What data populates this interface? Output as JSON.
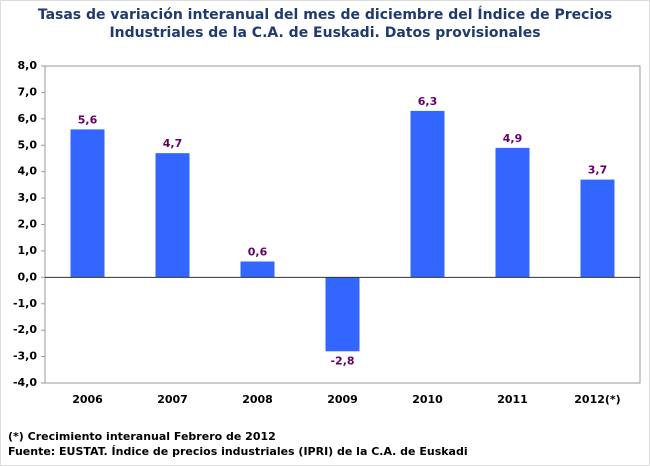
{
  "chart_data": {
    "type": "bar",
    "title": [
      "Tasas de variación interanual del mes de diciembre del Índice de Precios",
      "Industriales de la C.A. de Euskadi. Datos provisionales"
    ],
    "categories": [
      "2006",
      "2007",
      "2008",
      "2009",
      "2010",
      "2011",
      "2012(*)"
    ],
    "values": [
      5.6,
      4.7,
      0.6,
      -2.8,
      6.3,
      4.9,
      3.7
    ],
    "value_labels": [
      "5,6",
      "4,7",
      "0,6",
      "-2,8",
      "6,3",
      "4,9",
      "3,7"
    ],
    "color": "#3366ff",
    "ylim": [
      -4,
      8
    ],
    "yticks": [
      {
        "value": -4,
        "label": "-4,0"
      },
      {
        "value": -3,
        "label": "-3,0"
      },
      {
        "value": -2,
        "label": "-2,0"
      },
      {
        "value": -1,
        "label": "-1,0"
      },
      {
        "value": 0,
        "label": "0,0"
      },
      {
        "value": 1,
        "label": "1,0"
      },
      {
        "value": 2,
        "label": "2,0"
      },
      {
        "value": 3,
        "label": "3,0"
      },
      {
        "value": 4,
        "label": "4,0"
      },
      {
        "value": 5,
        "label": "5,0"
      },
      {
        "value": 6,
        "label": "6,0"
      },
      {
        "value": 7,
        "label": "7,0"
      },
      {
        "value": 8,
        "label": "8,0"
      }
    ],
    "grid": false,
    "notes": [
      "(*) Crecimiento interanual Febrero de 2012",
      "Fuente: EUSTAT. Índice de precios industriales (IPRI) de la C.A. de Euskadi"
    ]
  }
}
